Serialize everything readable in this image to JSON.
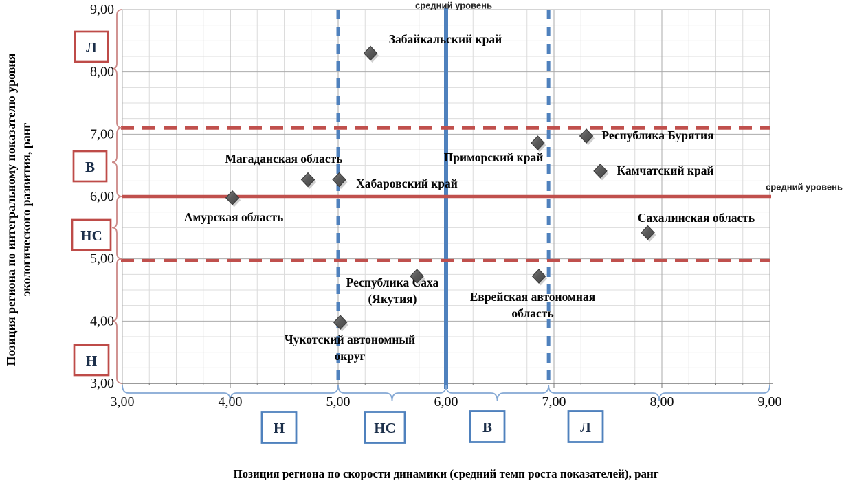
{
  "chart_data": {
    "type": "scatter",
    "title": "",
    "xlabel": "Позиция региона по скорости динамики (средний темп роста показателей), ранг",
    "ylabel_lines": [
      "Позиция региона  по интегральному показателю уровня",
      "экологического развития, ранг"
    ],
    "xlim": [
      3.0,
      9.0
    ],
    "ylim": [
      3.0,
      9.0
    ],
    "grid": "minor every 0.25, major every 1.0",
    "legend": "none",
    "x_ticks": [
      "3,00",
      "4,00",
      "5,00",
      "6,00",
      "7,00",
      "8,00",
      "9,00"
    ],
    "y_ticks": [
      "9,00",
      "8,00",
      "7,00",
      "6,00",
      "5,00",
      "4,00",
      "3,00"
    ],
    "points": [
      {
        "region": "Забайкальский край",
        "x": 5.3,
        "y": 8.3,
        "label_lines": [
          "Забайкальский край"
        ]
      },
      {
        "region": "Республика Бурятия",
        "x": 7.3,
        "y": 6.97,
        "label_lines": [
          "Республика Бурятия"
        ]
      },
      {
        "region": "Приморский край",
        "x": 6.85,
        "y": 6.86,
        "label_lines": [
          "Приморский край"
        ]
      },
      {
        "region": "Камчатский край",
        "x": 7.43,
        "y": 6.41,
        "label_lines": [
          "Камчатский край"
        ]
      },
      {
        "region": "Магаданская область",
        "x": 4.72,
        "y": 6.27,
        "label_lines": [
          "Магаданская область"
        ]
      },
      {
        "region": "Хабаровский край",
        "x": 5.01,
        "y": 6.27,
        "label_lines": [
          "Хабаровский край"
        ]
      },
      {
        "region": "Амурская область",
        "x": 4.02,
        "y": 5.98,
        "label_lines": [
          "Амурская область"
        ]
      },
      {
        "region": "Сахалинская область",
        "x": 7.87,
        "y": 5.42,
        "label_lines": [
          "Сахалинская область"
        ]
      },
      {
        "region": "Республика Саха (Якутия)",
        "x": 5.73,
        "y": 4.72,
        "label_lines": [
          "Республика Саха",
          "(Якутия)"
        ]
      },
      {
        "region": "Еврейская автономная область",
        "x": 6.86,
        "y": 4.72,
        "label_lines": [
          "Еврейская автономная",
          "область"
        ]
      },
      {
        "region": "Чукотский автономный округ",
        "x": 5.02,
        "y": 3.98,
        "label_lines": [
          "Чукотский автономный",
          "округ"
        ]
      }
    ],
    "reference_lines": [
      {
        "orientation": "vertical",
        "style": "solid",
        "value": 6.0,
        "label": "средний уровень",
        "color": "#4F81BD"
      },
      {
        "orientation": "horizontal",
        "style": "solid",
        "value": 6.0,
        "label": "средний уровень",
        "color": "#C0504D"
      },
      {
        "orientation": "vertical",
        "style": "dashed",
        "value": 5.0,
        "label": "",
        "color": "#4F81BD"
      },
      {
        "orientation": "vertical",
        "style": "dashed",
        "value": 6.95,
        "label": "",
        "color": "#4F81BD"
      },
      {
        "orientation": "horizontal",
        "style": "dashed",
        "value": 7.1,
        "label": "",
        "color": "#C0504D"
      },
      {
        "orientation": "horizontal",
        "style": "dashed",
        "value": 4.97,
        "label": "",
        "color": "#C0504D"
      }
    ],
    "zones_y_axis": [
      {
        "label": "Л",
        "range": [
          7.1,
          9.0
        ]
      },
      {
        "label": "В",
        "range": [
          6.0,
          7.1
        ]
      },
      {
        "label": "НС",
        "range": [
          5.0,
          6.0
        ]
      },
      {
        "label": "Н",
        "range": [
          3.0,
          5.0
        ]
      }
    ],
    "zones_x_axis": [
      {
        "label": "Н",
        "range": [
          3.0,
          5.0
        ]
      },
      {
        "label": "НС",
        "range": [
          5.0,
          6.0
        ]
      },
      {
        "label": "В",
        "range": [
          6.0,
          6.95
        ]
      },
      {
        "label": "Л",
        "range": [
          6.95,
          9.0
        ]
      }
    ],
    "colors": {
      "marker": "#565656",
      "marker_edge": "#3a3a3a",
      "solid_vertical_line": "#4F81BD",
      "solid_horizontal_line": "#C0504D",
      "dashed_vertical_line": "#4F81BD",
      "dashed_horizontal_line": "#C0504D",
      "y_zone_box_border": "#BE4B48",
      "x_zone_box_border": "#4F81BD",
      "y_brace": "#CC8987",
      "x_brace": "#84A8D4",
      "zone_letter": "#1C2F4A",
      "grid_minor": "#DCDCDC",
      "grid_major": "#ABABAB",
      "axis": "#7a7a7a",
      "ref_label_text": "#262626"
    }
  }
}
